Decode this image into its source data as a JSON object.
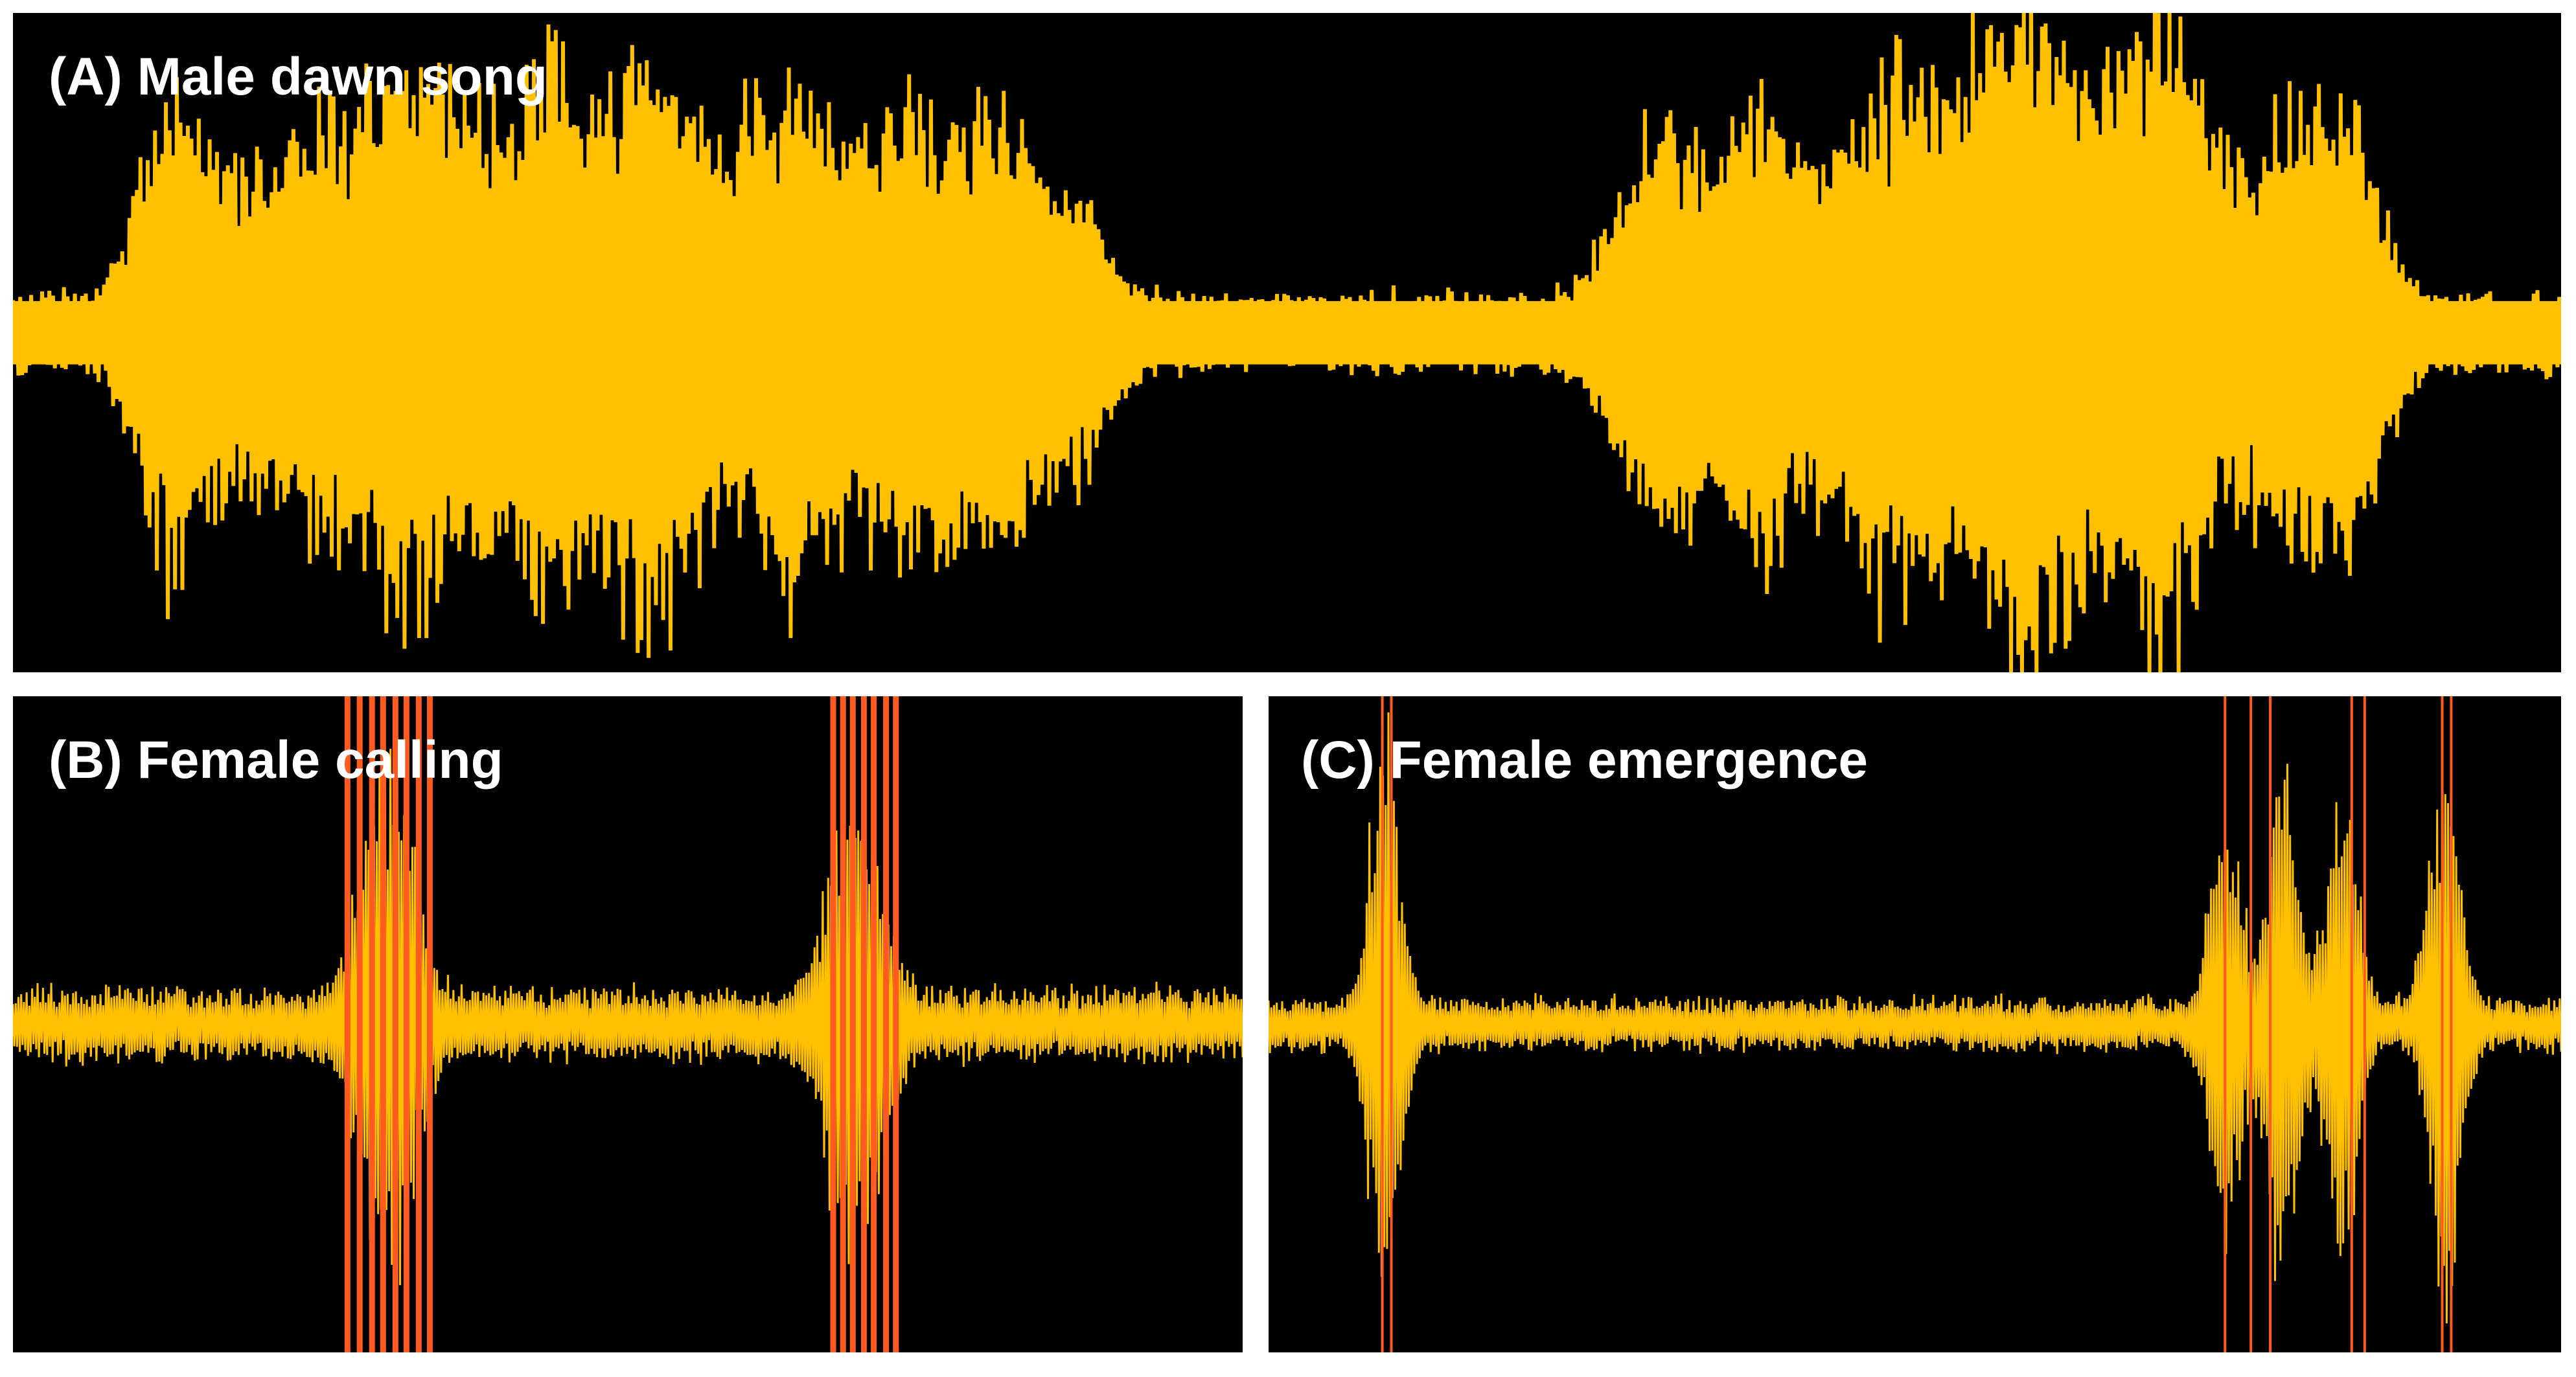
{
  "colors": {
    "background": "#000000",
    "waveform": "#FFC000",
    "highlight": "#FF5A1F",
    "title": "#FFFFFF"
  },
  "panels": [
    {
      "id": "a",
      "title": "(A) Male dawn song",
      "noise_amplitude": 0.12,
      "events": [
        {
          "center": 0.063,
          "amplitude": 0.78
        },
        {
          "center": 0.095,
          "amplitude": 0.46
        },
        {
          "center": 0.12,
          "amplitude": 0.55
        },
        {
          "center": 0.143,
          "amplitude": 0.52
        },
        {
          "center": 0.163,
          "amplitude": 0.78
        },
        {
          "center": 0.188,
          "amplitude": 0.55
        },
        {
          "center": 0.214,
          "amplitude": 0.82
        },
        {
          "center": 0.243,
          "amplitude": 0.7
        },
        {
          "center": 0.262,
          "amplitude": 0.62
        },
        {
          "center": 0.29,
          "amplitude": 0.52
        },
        {
          "center": 0.312,
          "amplitude": 0.71
        },
        {
          "center": 0.34,
          "amplitude": 0.55
        },
        {
          "center": 0.363,
          "amplitude": 0.6
        },
        {
          "center": 0.389,
          "amplitude": 0.67
        },
        {
          "center": 0.416,
          "amplitude": 0.4
        },
        {
          "center": 0.637,
          "amplitude": 0.43
        },
        {
          "center": 0.656,
          "amplitude": 0.45
        },
        {
          "center": 0.686,
          "amplitude": 0.7
        },
        {
          "center": 0.714,
          "amplitude": 0.42
        },
        {
          "center": 0.738,
          "amplitude": 0.8
        },
        {
          "center": 0.764,
          "amplitude": 0.55
        },
        {
          "center": 0.781,
          "amplitude": 0.62
        },
        {
          "center": 0.801,
          "amplitude": 0.93
        },
        {
          "center": 0.829,
          "amplitude": 0.7
        },
        {
          "center": 0.849,
          "amplitude": 0.92
        },
        {
          "center": 0.88,
          "amplitude": 0.45
        },
        {
          "center": 0.903,
          "amplitude": 0.55
        },
        {
          "center": 0.919,
          "amplitude": 0.48
        }
      ],
      "highlights": []
    },
    {
      "id": "b",
      "title": "(B) Female calling",
      "noise_amplitude": 0.11,
      "events": [
        {
          "center": 0.305,
          "amplitude": 0.9
        },
        {
          "center": 0.685,
          "amplitude": 0.8
        }
      ],
      "highlights": [
        0.272,
        0.282,
        0.292,
        0.301,
        0.311,
        0.32,
        0.33,
        0.339,
        0.667,
        0.675,
        0.683,
        0.692,
        0.7,
        0.71,
        0.718
      ]
    },
    {
      "id": "c",
      "title": "(C) Female emergence",
      "noise_amplitude": 0.08,
      "events": [
        {
          "center": 0.09,
          "amplitude": 0.98
        },
        {
          "center": 0.74,
          "amplitude": 0.75
        },
        {
          "center": 0.785,
          "amplitude": 0.85
        },
        {
          "center": 0.83,
          "amplitude": 0.8
        },
        {
          "center": 0.91,
          "amplitude": 0.98
        }
      ],
      "highlights": [
        0.088,
        0.095,
        0.74,
        0.76,
        0.775,
        0.838,
        0.848,
        0.908,
        0.915
      ]
    }
  ]
}
